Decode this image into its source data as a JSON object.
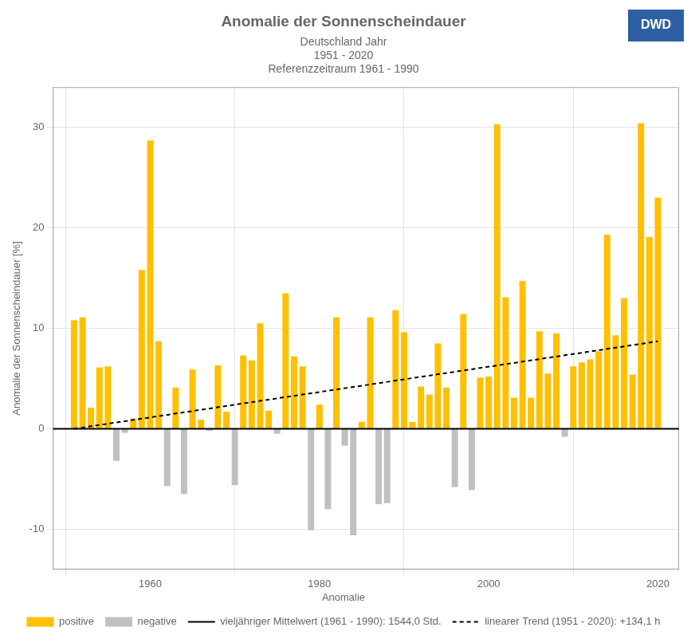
{
  "chart_data": {
    "type": "bar",
    "title": "Anomalie der Sonnenscheindauer",
    "subtitle": [
      "Deutschland Jahr",
      "1951 - 2020",
      "Referenzzeitraum 1961 - 1990"
    ],
    "ylabel": "Anomalie der Sonnenscheindauer [%]",
    "x": [
      1951,
      1952,
      1953,
      1954,
      1955,
      1956,
      1957,
      1958,
      1959,
      1960,
      1961,
      1962,
      1963,
      1964,
      1965,
      1966,
      1967,
      1968,
      1969,
      1970,
      1971,
      1972,
      1973,
      1974,
      1975,
      1976,
      1977,
      1978,
      1979,
      1980,
      1981,
      1982,
      1983,
      1984,
      1985,
      1986,
      1987,
      1988,
      1989,
      1990,
      1991,
      1992,
      1993,
      1994,
      1995,
      1996,
      1997,
      1998,
      1999,
      2000,
      2001,
      2002,
      2003,
      2004,
      2005,
      2006,
      2007,
      2008,
      2009,
      2010,
      2011,
      2012,
      2013,
      2014,
      2015,
      2016,
      2017,
      2018,
      2019,
      2020
    ],
    "xlim": [
      1948.5,
      2022.5
    ],
    "xticks": [
      1960,
      1980,
      2000,
      2020
    ],
    "ylim": [
      -14,
      34
    ],
    "yticks": [
      -10,
      0,
      10,
      20,
      30
    ],
    "grid": true,
    "series": [
      {
        "name": "Anomalie",
        "type": "bar",
        "values": [
          10.8,
          11.1,
          2.1,
          6.1,
          6.2,
          -3.2,
          -0.4,
          1.0,
          15.8,
          28.7,
          8.7,
          -5.7,
          4.1,
          -6.5,
          5.9,
          0.9,
          -0.2,
          6.3,
          1.7,
          -5.6,
          7.3,
          6.8,
          10.5,
          1.8,
          -0.5,
          13.5,
          7.2,
          6.2,
          -10.1,
          2.4,
          -8.0,
          11.1,
          -1.7,
          -10.6,
          0.7,
          11.1,
          -7.5,
          -7.4,
          11.8,
          9.6,
          0.7,
          4.2,
          3.4,
          8.5,
          4.1,
          -5.8,
          11.4,
          -6.1,
          5.1,
          5.2,
          30.3,
          13.1,
          3.1,
          14.7,
          3.1,
          9.7,
          5.5,
          9.5,
          -0.8,
          6.2,
          6.6,
          6.9,
          7.7,
          19.3,
          9.3,
          13.0,
          5.4,
          30.4,
          19.1,
          23.0
        ],
        "colors": [
          "#FFC000",
          "#FFC000",
          "#FFC000",
          "#FFC000",
          "#FFC000",
          "#C0C0C0",
          "#C0C0C0",
          "#FFC000",
          "#FFC000",
          "#FFC000",
          "#FFC000",
          "#C0C0C0",
          "#FFC000",
          "#C0C0C0",
          "#FFC000",
          "#FFC000",
          "#C0C0C0",
          "#FFC000",
          "#FFC000",
          "#C0C0C0",
          "#FFC000",
          "#FFC000",
          "#FFC000",
          "#FFC000",
          "#C0C0C0",
          "#FFC000",
          "#FFC000",
          "#FFC000",
          "#C0C0C0",
          "#FFC000",
          "#C0C0C0",
          "#FFC000",
          "#C0C0C0",
          "#C0C0C0",
          "#FFC000",
          "#FFC000",
          "#C0C0C0",
          "#C0C0C0",
          "#FFC000",
          "#FFC000",
          "#FFC000",
          "#FFC000",
          "#FFC000",
          "#FFC000",
          "#FFC000",
          "#C0C0C0",
          "#FFC000",
          "#C0C0C0",
          "#FFC000",
          "#FFC000",
          "#FFC000",
          "#FFC000",
          "#FFC000",
          "#FFC000",
          "#FFC000",
          "#FFC000",
          "#FFC000",
          "#FFC000",
          "#C0C0C0",
          "#FFC000",
          "#FFC000",
          "#FFC000",
          "#FFC000",
          "#FFC000",
          "#FFC000",
          "#FFC000",
          "#FFC000",
          "#FFC000",
          "#FFC000",
          "#FFC000"
        ]
      },
      {
        "name": "vieljähriger Mittelwert (1961 - 1990): 1544,0 Std.",
        "type": "line",
        "x": [
          1948.5,
          2022.5
        ],
        "values": [
          0,
          0
        ],
        "color": "#000000",
        "line_style": "solid"
      },
      {
        "name": "linearer Trend (1951 - 2020): +134,1 h",
        "type": "line",
        "x": [
          1951,
          2020
        ],
        "values": [
          0.0,
          8.7
        ],
        "color": "#000000",
        "line_style": "dashed"
      }
    ],
    "annotations": [
      {
        "text": "positive",
        "color": "#FFC000"
      },
      {
        "text": "negative",
        "color": "#C0C0C0"
      },
      {
        "text": "DWD",
        "color": "#2E5FA3"
      }
    ]
  }
}
